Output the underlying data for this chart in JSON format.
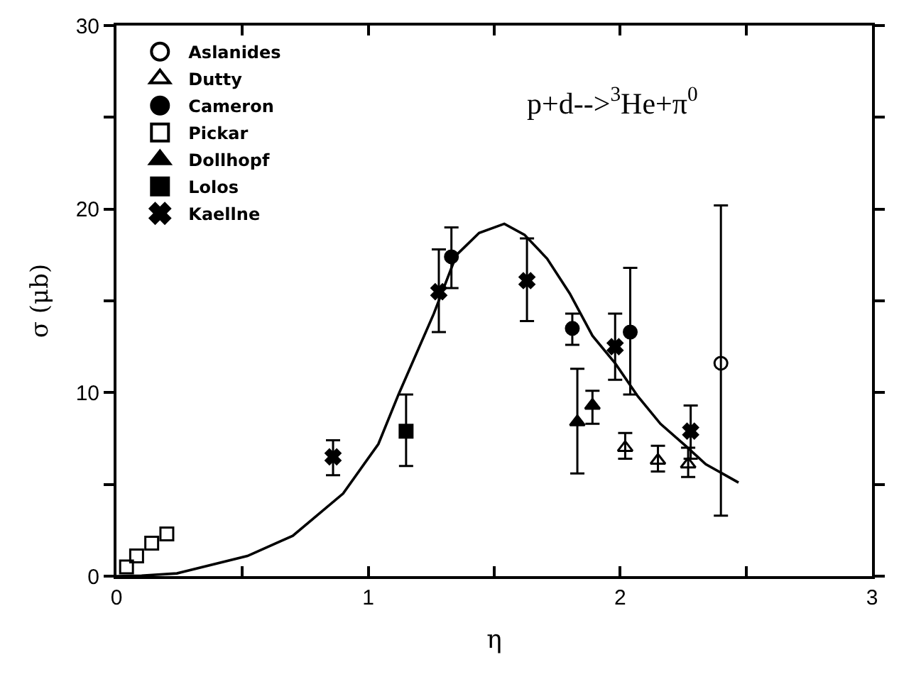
{
  "chart_data": {
    "type": "scatter",
    "xlabel": "η",
    "ylabel": "σ (μb)",
    "annotations": [
      "p+d-->$^{3}$He+π$^{0}$"
    ],
    "xlim": [
      0,
      3
    ],
    "ylim": [
      0,
      30
    ],
    "xticks": [
      0,
      {
        "value": 0.5,
        "label": null
      },
      1,
      {
        "value": 1.5,
        "label": null
      },
      2,
      {
        "value": 2.5,
        "label": null
      },
      3
    ],
    "yticks": [
      0,
      {
        "value": 5,
        "label": null
      },
      10,
      {
        "value": 15,
        "label": null
      },
      20,
      {
        "value": 25,
        "label": null
      },
      30
    ],
    "legend": "top left",
    "series": [
      {
        "name": "Aslanides",
        "color": "#000000",
        "marker": "circle-open",
        "x": [
          2.4
        ],
        "values": [
          11.6
        ],
        "errors": [
          [
            3.3,
            20.2
          ]
        ]
      },
      {
        "name": "Dutty",
        "color": "#000000",
        "marker": "triangle-open",
        "x": [
          2.02,
          2.15,
          2.27
        ],
        "values": [
          7.0,
          6.3,
          6.1
        ],
        "errors": [
          [
            6.4,
            7.8
          ],
          [
            5.7,
            7.1
          ],
          [
            5.4,
            7.0
          ]
        ]
      },
      {
        "name": "Cameron",
        "color": "#000000",
        "marker": "circle",
        "x": [
          1.33,
          1.81,
          2.04
        ],
        "values": [
          17.4,
          13.5,
          13.3
        ],
        "errors": [
          [
            15.7,
            19.0
          ],
          [
            12.6,
            14.3
          ],
          [
            9.9,
            16.8
          ]
        ]
      },
      {
        "name": "Pickar",
        "color": "#000000",
        "marker": "square-open",
        "x": [
          0.04,
          0.08,
          0.14,
          0.2
        ],
        "values": [
          0.5,
          1.1,
          1.8,
          2.3
        ]
      },
      {
        "name": "Dollhopf",
        "color": "#000000",
        "marker": "triangle",
        "x": [
          1.83,
          1.89
        ],
        "values": [
          8.4,
          9.3
        ],
        "errors": [
          [
            5.6,
            11.3
          ],
          [
            8.3,
            10.1
          ]
        ]
      },
      {
        "name": "Lolos",
        "color": "#000000",
        "marker": "square",
        "x": [
          1.15
        ],
        "values": [
          7.9
        ],
        "errors": [
          [
            6.0,
            9.9
          ]
        ]
      },
      {
        "name": "Kaellne",
        "color": "#000000",
        "marker": "cross",
        "x": [
          0.86,
          1.28,
          1.63,
          1.98,
          2.28
        ],
        "values": [
          6.5,
          15.5,
          16.1,
          12.5,
          7.9
        ],
        "errors": [
          [
            5.5,
            7.4
          ],
          [
            13.3,
            17.8
          ],
          [
            13.9,
            18.4
          ],
          [
            10.7,
            14.3
          ],
          [
            6.4,
            9.3
          ]
        ]
      },
      {
        "type": "line",
        "color": "#000000",
        "marker": "none",
        "line_style": "solid",
        "x": [
          0,
          0.1,
          0.24,
          0.52,
          0.7,
          0.9,
          1.04,
          1.12,
          1.26,
          1.35,
          1.44,
          1.54,
          1.62,
          1.71,
          1.8,
          1.89,
          1.98,
          2.07,
          2.16,
          2.26,
          2.34,
          2.47
        ],
        "values": [
          0,
          0.03,
          0.15,
          1.1,
          2.2,
          4.5,
          7.2,
          9.9,
          14.3,
          17.5,
          18.7,
          19.2,
          18.6,
          17.3,
          15.4,
          13.1,
          11.6,
          9.8,
          8.3,
          7.1,
          6.1,
          5.1
        ]
      }
    ]
  }
}
